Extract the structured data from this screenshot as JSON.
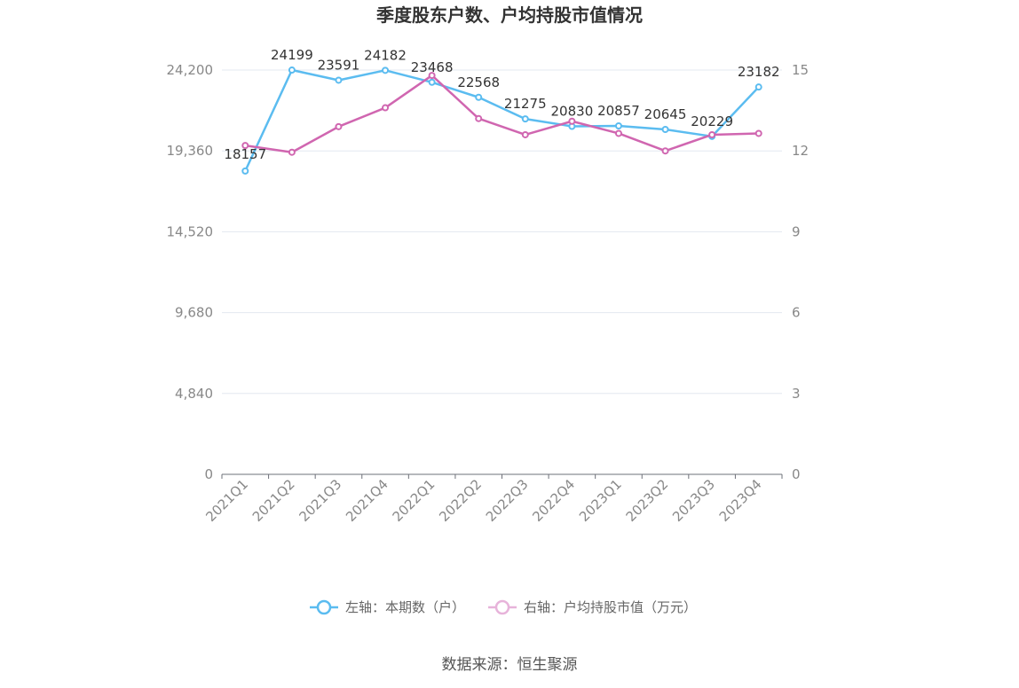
{
  "chart_data": {
    "type": "line",
    "title": "季度股东户数、户均持股市值情况",
    "categories": [
      "2021Q1",
      "2021Q2",
      "2021Q3",
      "2021Q4",
      "2022Q1",
      "2022Q2",
      "2022Q3",
      "2022Q4",
      "2023Q1",
      "2023Q2",
      "2023Q3",
      "2023Q4"
    ],
    "series": [
      {
        "name": "左轴：本期数（户）",
        "axis": "left",
        "color": "#5bbcf0",
        "values": [
          18157,
          24199,
          23591,
          24182,
          23468,
          22568,
          21275,
          20830,
          20857,
          20645,
          20229,
          23182
        ],
        "data_labels": [
          "18157",
          "24199",
          "23591",
          "24182",
          "23468",
          "22568",
          "21275",
          "20830",
          "20857",
          "20645",
          "20229",
          "23182"
        ]
      },
      {
        "name": "右轴：户均持股市值（万元）",
        "axis": "right",
        "color": "#d066b0",
        "values": [
          12.2,
          11.95,
          12.9,
          13.6,
          14.8,
          13.2,
          12.6,
          13.1,
          12.65,
          12.0,
          12.6,
          12.65
        ]
      }
    ],
    "left_axis": {
      "ylim": [
        0,
        24200
      ],
      "ticks": [
        "0",
        "4,840",
        "9,680",
        "14,520",
        "19,360",
        "24,200"
      ]
    },
    "right_axis": {
      "ylim": [
        0,
        15
      ],
      "ticks": [
        "0",
        "3",
        "6",
        "9",
        "12",
        "15"
      ]
    },
    "grid": true,
    "legend_position": "bottom"
  },
  "source_text": "数据来源：恒生聚源"
}
